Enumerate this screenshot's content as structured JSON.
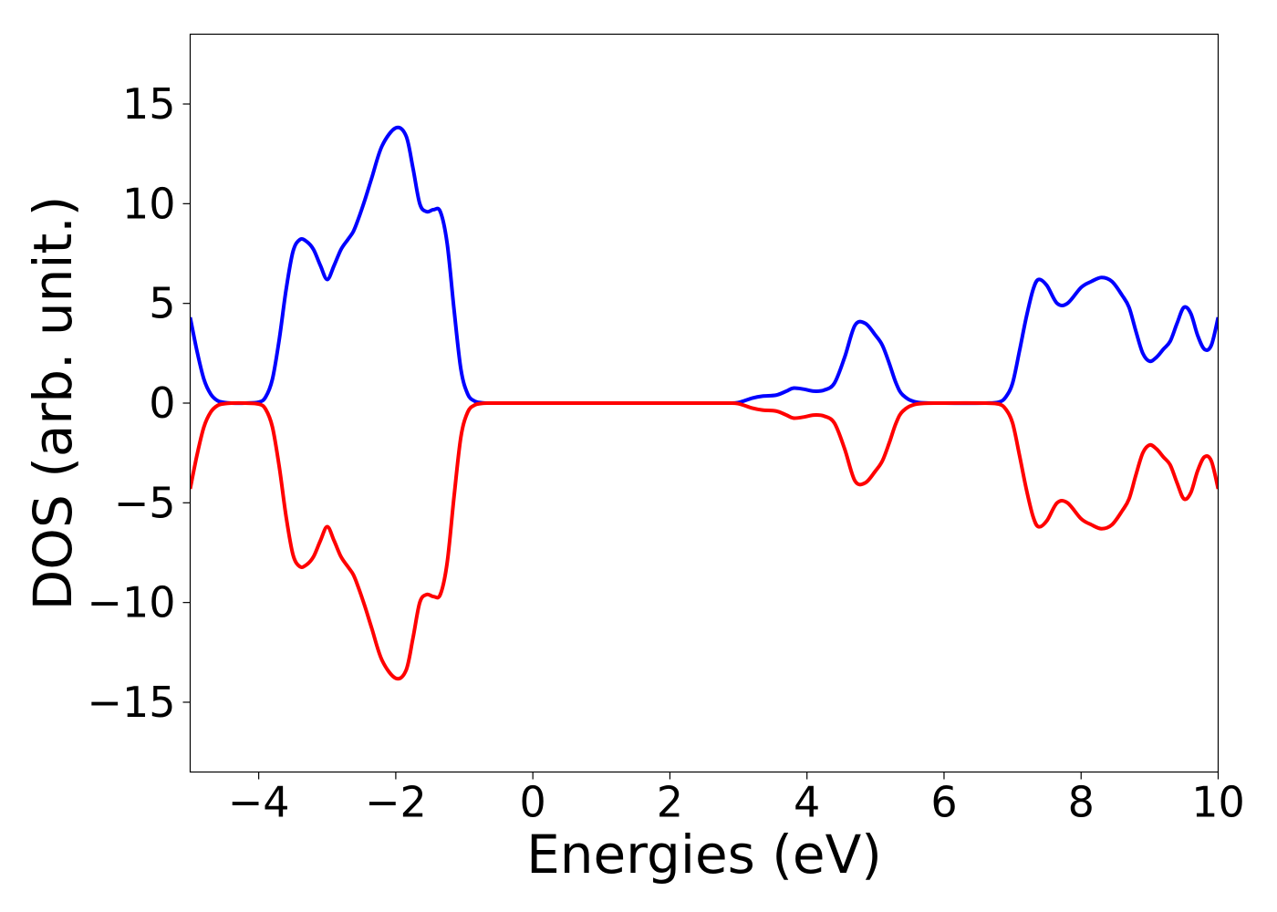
{
  "chart_data": {
    "type": "line",
    "title": "",
    "xlabel": "Energies (eV)",
    "ylabel": "DOS (arb. unit.)",
    "xlim": [
      -5,
      10
    ],
    "ylim": [
      -18.5,
      18.5
    ],
    "x_ticks": [
      -4,
      -2,
      0,
      2,
      4,
      6,
      8,
      10
    ],
    "x_tick_labels": [
      "−4",
      "−2",
      "0",
      "2",
      "4",
      "6",
      "8",
      "10"
    ],
    "y_ticks": [
      15,
      10,
      5,
      0,
      -5,
      -10,
      -15
    ],
    "y_tick_labels": [
      "15",
      "10",
      "5",
      "0",
      "−5",
      "−10",
      "−15"
    ],
    "grid": false,
    "legend": "none",
    "series": [
      {
        "color": "#0000ff",
        "x": [
          -5.0,
          -4.9,
          -4.8,
          -4.7,
          -4.6,
          -4.5,
          -4.4,
          -4.2,
          -4.0,
          -3.9,
          -3.8,
          -3.7,
          -3.6,
          -3.5,
          -3.4,
          -3.3,
          -3.2,
          -3.1,
          -3.0,
          -2.9,
          -2.8,
          -2.7,
          -2.62,
          -2.55,
          -2.45,
          -2.35,
          -2.2,
          -2.0,
          -1.85,
          -1.75,
          -1.65,
          -1.55,
          -1.45,
          -1.35,
          -1.25,
          -1.15,
          -1.05,
          -0.95,
          -0.85,
          -0.75,
          -0.65,
          -0.55,
          -0.45,
          -0.3,
          0.0,
          1.0,
          2.0,
          2.8,
          3.0,
          3.2,
          3.35,
          3.55,
          3.7,
          3.8,
          3.95,
          4.1,
          4.25,
          4.4,
          4.55,
          4.7,
          4.85,
          5.0,
          5.1,
          5.2,
          5.3,
          5.4,
          5.6,
          6.0,
          6.6,
          6.8,
          6.9,
          7.0,
          7.1,
          7.2,
          7.3,
          7.38,
          7.5,
          7.65,
          7.8,
          8.0,
          8.15,
          8.3,
          8.45,
          8.6,
          8.7,
          8.8,
          8.9,
          9.0,
          9.1,
          9.2,
          9.3,
          9.4,
          9.5,
          9.6,
          9.7,
          9.8,
          9.9,
          10.0
        ],
        "y": [
          4.3,
          2.6,
          1.2,
          0.45,
          0.12,
          0.03,
          0.0,
          0.0,
          0.05,
          0.3,
          1.2,
          3.2,
          5.7,
          7.6,
          8.2,
          8.1,
          7.7,
          6.9,
          6.2,
          6.9,
          7.7,
          8.2,
          8.6,
          9.2,
          10.2,
          11.3,
          12.9,
          13.8,
          13.4,
          11.8,
          10.0,
          9.6,
          9.7,
          9.6,
          8.0,
          4.7,
          1.7,
          0.45,
          0.1,
          0.02,
          0.0,
          0.0,
          0.0,
          0.0,
          0.0,
          0.0,
          0.0,
          0.0,
          0.03,
          0.25,
          0.35,
          0.4,
          0.6,
          0.75,
          0.7,
          0.6,
          0.65,
          1.0,
          2.3,
          3.9,
          4.0,
          3.4,
          2.9,
          2.0,
          1.0,
          0.4,
          0.05,
          0.0,
          0.0,
          0.05,
          0.3,
          1.0,
          2.6,
          4.3,
          5.7,
          6.2,
          5.9,
          5.0,
          5.0,
          5.8,
          6.1,
          6.3,
          6.1,
          5.4,
          4.8,
          3.6,
          2.5,
          2.1,
          2.3,
          2.7,
          3.1,
          4.0,
          4.8,
          4.5,
          3.4,
          2.7,
          2.9,
          4.3
        ]
      },
      {
        "color": "#ff0000",
        "x": [
          -5.0,
          -4.9,
          -4.8,
          -4.7,
          -4.6,
          -4.5,
          -4.4,
          -4.2,
          -4.0,
          -3.9,
          -3.8,
          -3.7,
          -3.6,
          -3.5,
          -3.4,
          -3.3,
          -3.2,
          -3.1,
          -3.0,
          -2.9,
          -2.8,
          -2.7,
          -2.62,
          -2.55,
          -2.45,
          -2.35,
          -2.2,
          -2.0,
          -1.85,
          -1.75,
          -1.65,
          -1.55,
          -1.45,
          -1.35,
          -1.25,
          -1.15,
          -1.05,
          -0.95,
          -0.85,
          -0.75,
          -0.65,
          -0.55,
          -0.45,
          -0.3,
          0.0,
          1.0,
          2.0,
          2.8,
          3.0,
          3.2,
          3.35,
          3.55,
          3.7,
          3.8,
          3.95,
          4.1,
          4.25,
          4.4,
          4.55,
          4.7,
          4.85,
          5.0,
          5.1,
          5.2,
          5.3,
          5.4,
          5.6,
          6.0,
          6.6,
          6.8,
          6.9,
          7.0,
          7.1,
          7.2,
          7.3,
          7.38,
          7.5,
          7.65,
          7.8,
          8.0,
          8.15,
          8.3,
          8.45,
          8.6,
          8.7,
          8.8,
          8.9,
          9.0,
          9.1,
          9.2,
          9.3,
          9.4,
          9.5,
          9.6,
          9.7,
          9.8,
          9.9,
          10.0
        ],
        "y": [
          -4.3,
          -2.6,
          -1.2,
          -0.45,
          -0.12,
          -0.03,
          0.0,
          0.0,
          -0.05,
          -0.3,
          -1.2,
          -3.2,
          -5.7,
          -7.6,
          -8.2,
          -8.1,
          -7.7,
          -6.9,
          -6.2,
          -6.9,
          -7.7,
          -8.2,
          -8.6,
          -9.2,
          -10.2,
          -11.3,
          -12.9,
          -13.8,
          -13.4,
          -11.8,
          -10.0,
          -9.6,
          -9.7,
          -9.6,
          -8.0,
          -4.7,
          -1.7,
          -0.45,
          -0.1,
          -0.02,
          0.0,
          0.0,
          0.0,
          0.0,
          0.0,
          0.0,
          0.0,
          0.0,
          -0.03,
          -0.25,
          -0.35,
          -0.4,
          -0.6,
          -0.75,
          -0.7,
          -0.6,
          -0.65,
          -1.0,
          -2.3,
          -3.9,
          -4.0,
          -3.4,
          -2.9,
          -2.0,
          -1.0,
          -0.4,
          -0.05,
          0.0,
          0.0,
          -0.05,
          -0.3,
          -1.0,
          -2.6,
          -4.3,
          -5.7,
          -6.2,
          -5.9,
          -5.0,
          -5.0,
          -5.8,
          -6.1,
          -6.3,
          -6.1,
          -5.4,
          -4.8,
          -3.6,
          -2.5,
          -2.1,
          -2.3,
          -2.7,
          -3.1,
          -4.0,
          -4.8,
          -4.5,
          -3.4,
          -2.7,
          -2.9,
          -4.3
        ]
      }
    ]
  }
}
